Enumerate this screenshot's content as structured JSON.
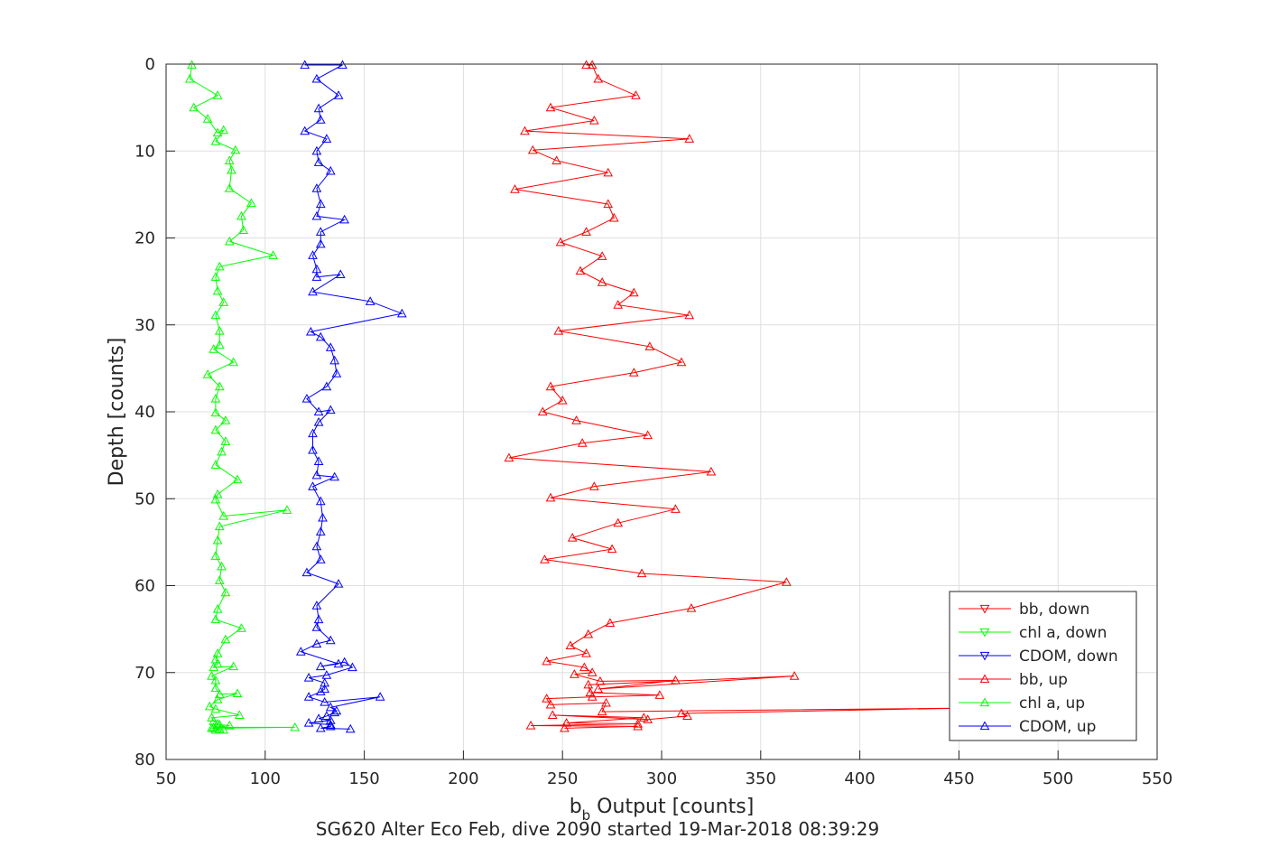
{
  "chart_data": {
    "type": "line",
    "caption": "SG620 Alter Eco Feb, dive 2090 started 19-Mar-2018 08:39:29",
    "xlabel_main": "b",
    "xlabel_sub": "b",
    "xlabel_rest": " Output [counts]",
    "ylabel": "Depth [counts]",
    "xlim": [
      50,
      550
    ],
    "ylim": [
      0,
      80
    ],
    "y_reversed": true,
    "grid": true,
    "xticks": [
      50,
      100,
      150,
      200,
      250,
      300,
      350,
      400,
      450,
      500,
      550
    ],
    "yticks": [
      0,
      10,
      20,
      30,
      40,
      50,
      60,
      70,
      80
    ],
    "legend_position": "bottom-right",
    "series": [
      {
        "name": "bb, down",
        "color": "#ff0000",
        "marker": "triangle-down",
        "x": [],
        "y": []
      },
      {
        "name": "chl a, down",
        "color": "#00ff00",
        "marker": "triangle-down",
        "x": [],
        "y": []
      },
      {
        "name": "CDOM, down",
        "color": "#0000ff",
        "marker": "triangle-down",
        "x": [],
        "y": []
      },
      {
        "name": "bb, up",
        "color": "#ff0000",
        "marker": "triangle-up",
        "x": [
          262,
          265,
          268,
          287,
          244,
          266,
          231,
          314,
          235,
          247,
          273,
          226,
          273,
          276,
          262,
          249,
          270,
          259,
          270,
          286,
          278,
          314,
          248,
          294,
          310,
          286,
          244,
          250,
          240,
          257,
          293,
          260,
          223,
          325,
          266,
          244,
          307,
          278,
          255,
          275,
          241,
          290,
          363,
          315,
          274,
          263,
          254,
          262,
          242,
          261,
          265,
          256,
          269,
          307,
          268,
          367,
          263,
          264,
          299,
          265,
          242,
          244,
          272,
          270,
          450,
          310,
          313,
          293,
          245,
          291,
          252,
          288,
          234,
          288,
          251
        ],
        "y": [
          0.1,
          0.1,
          1.7,
          3.6,
          5.0,
          6.5,
          7.7,
          8.6,
          9.9,
          11.1,
          12.5,
          14.4,
          16.1,
          17.7,
          19.3,
          20.5,
          22.1,
          23.8,
          25.1,
          26.3,
          27.7,
          28.9,
          30.7,
          32.5,
          34.3,
          35.5,
          37.1,
          38.7,
          40.0,
          41.0,
          42.7,
          43.6,
          45.3,
          46.9,
          48.6,
          49.9,
          51.2,
          52.8,
          54.5,
          55.8,
          57.0,
          58.6,
          59.6,
          62.6,
          64.3,
          65.6,
          66.9,
          67.8,
          68.7,
          69.4,
          70.0,
          70.2,
          71.0,
          70.9,
          71.9,
          70.4,
          71.4,
          72.3,
          72.6,
          72.8,
          73.0,
          73.7,
          73.5,
          74.5,
          74.1,
          74.7,
          75.0,
          75.4,
          74.9,
          75.2,
          75.8,
          75.9,
          76.1,
          76.2,
          76.4
        ]
      },
      {
        "name": "chl a, up",
        "color": "#00ff00",
        "marker": "triangle-up",
        "x": [
          63,
          62,
          76,
          64,
          71,
          76,
          79,
          75,
          85,
          82,
          83,
          82,
          93,
          88,
          89,
          82,
          104,
          77,
          75,
          76,
          79,
          75,
          77,
          77,
          74,
          84,
          71,
          77,
          75,
          75,
          80,
          75,
          80,
          78,
          75,
          86,
          76,
          75,
          79,
          111,
          77,
          76,
          75,
          78,
          77,
          80,
          76,
          75,
          88,
          80,
          76,
          75,
          76,
          74,
          84,
          73,
          75,
          75,
          77,
          86,
          76,
          72,
          75,
          87,
          73,
          74,
          76,
          77,
          82,
          74,
          115,
          73,
          77,
          75,
          79
        ],
        "y": [
          0.1,
          1.7,
          3.6,
          5.0,
          6.3,
          7.9,
          7.6,
          8.9,
          9.9,
          11.1,
          12.2,
          14.3,
          16.0,
          17.5,
          19.1,
          20.4,
          22.0,
          23.3,
          24.5,
          26.1,
          27.4,
          28.9,
          30.7,
          32.3,
          32.8,
          34.3,
          35.7,
          37.1,
          38.5,
          40.1,
          41.0,
          42.1,
          43.4,
          44.6,
          46.1,
          47.8,
          49.5,
          50.1,
          52.0,
          51.3,
          53.2,
          54.8,
          56.6,
          57.8,
          59.4,
          60.8,
          62.7,
          63.9,
          64.9,
          66.2,
          67.8,
          68.5,
          69.0,
          69.4,
          69.3,
          70.4,
          70.9,
          71.8,
          72.5,
          72.4,
          73.1,
          73.9,
          74.2,
          74.9,
          75.2,
          75.6,
          75.9,
          76.0,
          76.1,
          76.3,
          76.3,
          76.4,
          76.5,
          76.6,
          76.6
        ]
      },
      {
        "name": "CDOM, up",
        "color": "#0000ff",
        "marker": "triangle-up",
        "x": [
          120,
          139,
          126,
          137,
          127,
          128,
          120,
          131,
          126,
          127,
          133,
          126,
          128,
          126,
          140,
          128,
          128,
          124,
          126,
          126,
          138,
          124,
          153,
          169,
          123,
          128,
          133,
          135,
          136,
          131,
          121,
          127,
          133,
          127,
          124,
          124,
          127,
          126,
          135,
          124,
          128,
          129,
          128,
          126,
          128,
          121,
          137,
          126,
          127,
          126,
          133,
          126,
          118,
          137,
          128,
          140,
          144,
          131,
          122,
          130,
          130,
          128,
          122,
          130,
          158,
          133,
          136,
          135,
          131,
          127,
          133,
          122,
          133,
          133,
          128,
          143
        ],
        "y": [
          0.1,
          0.1,
          1.7,
          3.6,
          5.1,
          6.4,
          7.7,
          8.6,
          10.0,
          11.3,
          12.3,
          14.3,
          16.1,
          17.5,
          17.9,
          19.3,
          20.7,
          22.0,
          23.6,
          24.5,
          24.2,
          26.2,
          27.3,
          28.7,
          30.8,
          31.4,
          32.6,
          34.1,
          35.6,
          37.1,
          38.5,
          40.0,
          39.8,
          41.2,
          42.5,
          44.4,
          45.7,
          47.3,
          47.5,
          48.6,
          50.3,
          52.2,
          53.8,
          55.5,
          57.0,
          58.5,
          59.8,
          62.3,
          63.9,
          64.8,
          66.3,
          66.7,
          67.6,
          69.0,
          69.3,
          68.8,
          69.4,
          70.3,
          70.6,
          71.2,
          71.9,
          72.2,
          72.8,
          73.4,
          72.8,
          74.0,
          74.4,
          74.6,
          75.0,
          75.3,
          75.5,
          75.8,
          76.0,
          76.2,
          76.4,
          76.5
        ]
      }
    ]
  }
}
